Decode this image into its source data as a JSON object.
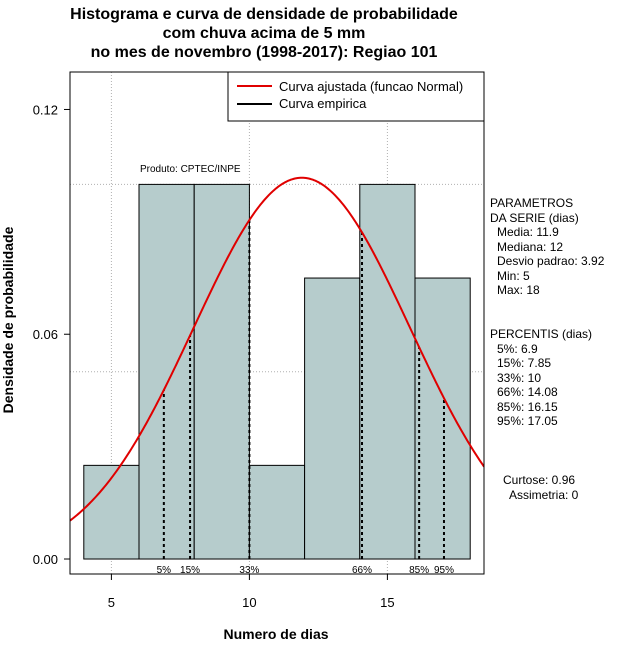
{
  "chart_data": {
    "type": "histogram",
    "title_lines": [
      "Histograma e curva de densidade de probabilidade",
      "com chuva acima de 5 mm",
      "no mes de novembro (1998-2017): Regiao 101"
    ],
    "xlabel": "Numero de dias",
    "ylabel": "Densidade de probabilidade",
    "xlim": [
      3.5,
      18.5
    ],
    "ylim": [
      -0.004,
      0.13
    ],
    "x_ticks": [
      5,
      10,
      15
    ],
    "y_ticks": [
      0.0,
      0.06,
      0.12
    ],
    "y_tick_labels": [
      "0.00",
      "0.06",
      "0.12"
    ],
    "grid_x": [
      5,
      10,
      15
    ],
    "grid_y": [
      0.05,
      0.1
    ],
    "bins": [
      {
        "start": 4,
        "end": 6,
        "density": 0.025
      },
      {
        "start": 6,
        "end": 8,
        "density": 0.1
      },
      {
        "start": 8,
        "end": 10,
        "density": 0.1
      },
      {
        "start": 10,
        "end": 12,
        "density": 0.025
      },
      {
        "start": 12,
        "end": 14,
        "density": 0.075
      },
      {
        "start": 14,
        "end": 16,
        "density": 0.1
      },
      {
        "start": 16,
        "end": 18,
        "density": 0.075
      }
    ],
    "normal_curve": {
      "mean": 11.9,
      "sd": 3.92,
      "color": "#e00000"
    },
    "percentile_lines": [
      {
        "label": "5%",
        "x": 6.9
      },
      {
        "label": "15%",
        "x": 7.85
      },
      {
        "label": "33%",
        "x": 10
      },
      {
        "label": "66%",
        "x": 14.08
      },
      {
        "label": "85%",
        "x": 16.15
      },
      {
        "label": "95%",
        "x": 17.05
      }
    ],
    "legend": [
      {
        "label": "Curva ajustada (funcao Normal)",
        "color": "#e00000"
      },
      {
        "label": "Curva empirica",
        "color": "#000000"
      }
    ],
    "legend_position": "top-right",
    "product_label": "Produto: CPTEC/INPE",
    "bar_color": "#b6cccc"
  },
  "parametros": {
    "heading": [
      "PARAMETROS",
      "DA SERIE (dias)"
    ],
    "items": [
      "Media: 11.9",
      "Mediana: 12",
      "Desvio padrao: 3.92",
      "Min: 5",
      "Max: 18"
    ]
  },
  "percentis": {
    "heading": "PERCENTIS (dias)",
    "items": [
      "5%: 6.9",
      "15%: 7.85",
      "33%: 10",
      "66%: 14.08",
      "85%: 16.15",
      "95%: 17.05"
    ]
  },
  "shape": {
    "curtose": "Curtose: 0.96",
    "assimetria": "Assimetria: 0"
  }
}
